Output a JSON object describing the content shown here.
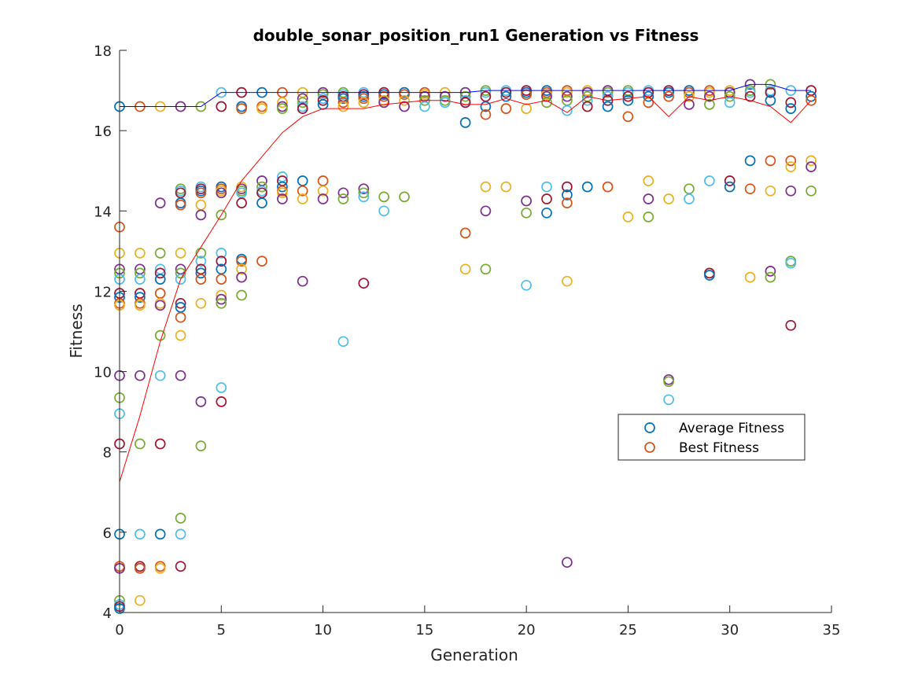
{
  "chart_data": {
    "type": "scatter",
    "title": "double_sonar_position_run1 Generation vs Fitness",
    "xlabel": "Generation",
    "ylabel": "Fitness",
    "xlim": [
      0,
      35
    ],
    "ylim": [
      4,
      18
    ],
    "xticks": [
      0,
      5,
      10,
      15,
      20,
      25,
      30,
      35
    ],
    "yticks": [
      4,
      6,
      8,
      10,
      12,
      14,
      16,
      18
    ],
    "grid": false,
    "legend": {
      "placement": "lower-right",
      "entries": [
        {
          "label": "Average Fitness",
          "color": "#0072BD"
        },
        {
          "label": "Best Fitness",
          "color": "#D95319"
        }
      ]
    },
    "marker_colors": [
      "#0072BD",
      "#D95319",
      "#EDB120",
      "#7E2F8E",
      "#77AC30",
      "#4DBEEE",
      "#A2142F"
    ],
    "population": [
      {
        "generation": 0,
        "fitness": [
          16.6,
          13.6,
          12.95,
          12.55,
          12.45,
          12.3,
          11.95,
          11.85,
          11.7,
          11.65,
          9.9,
          9.35,
          8.95,
          8.2,
          5.95,
          5.15,
          5.1,
          5.1,
          4.3,
          4.2,
          4.15,
          4.1
        ]
      },
      {
        "generation": 1,
        "fitness": [
          16.6,
          12.95,
          12.55,
          12.45,
          12.3,
          11.95,
          11.85,
          11.7,
          11.65,
          9.9,
          8.2,
          5.95,
          5.15,
          5.1,
          5.1,
          4.3
        ]
      },
      {
        "generation": 2,
        "fitness": [
          16.6,
          14.2,
          12.95,
          12.55,
          12.45,
          12.3,
          11.95,
          11.7,
          11.65,
          10.9,
          9.9,
          8.2,
          5.95,
          5.15,
          5.1
        ]
      },
      {
        "generation": 3,
        "fitness": [
          16.6,
          14.55,
          14.5,
          14.45,
          14.2,
          14.15,
          12.95,
          12.55,
          12.45,
          12.3,
          11.7,
          11.6,
          11.35,
          10.9,
          9.9,
          6.35,
          5.95,
          5.15
        ]
      },
      {
        "generation": 4,
        "fitness": [
          16.6,
          14.6,
          14.55,
          14.5,
          14.45,
          14.15,
          13.9,
          12.95,
          12.75,
          12.55,
          12.45,
          12.3,
          11.7,
          9.25,
          8.15
        ]
      },
      {
        "generation": 5,
        "fitness": [
          16.95,
          16.6,
          14.6,
          14.55,
          14.5,
          14.45,
          13.9,
          12.95,
          12.75,
          12.55,
          12.3,
          11.9,
          11.8,
          11.7,
          9.6,
          9.25
        ]
      },
      {
        "generation": 6,
        "fitness": [
          16.95,
          16.6,
          16.55,
          14.6,
          14.55,
          14.5,
          14.45,
          14.2,
          12.8,
          12.75,
          12.55,
          12.35,
          11.9
        ]
      },
      {
        "generation": 7,
        "fitness": [
          16.95,
          16.6,
          16.55,
          14.75,
          14.6,
          14.5,
          14.45,
          14.2,
          12.75
        ]
      },
      {
        "generation": 8,
        "fitness": [
          16.95,
          16.7,
          16.6,
          16.55,
          14.85,
          14.75,
          14.6,
          14.5,
          14.45,
          14.3
        ]
      },
      {
        "generation": 9,
        "fitness": [
          16.95,
          16.8,
          16.7,
          16.6,
          16.55,
          14.75,
          14.5,
          14.3,
          12.25
        ]
      },
      {
        "generation": 10,
        "fitness": [
          16.95,
          16.9,
          16.8,
          16.75,
          16.65,
          14.75,
          14.5,
          14.3
        ]
      },
      {
        "generation": 11,
        "fitness": [
          16.95,
          16.9,
          16.85,
          16.8,
          16.7,
          16.6,
          14.45,
          14.3,
          10.75
        ]
      },
      {
        "generation": 12,
        "fitness": [
          16.95,
          16.9,
          16.85,
          16.8,
          16.7,
          14.55,
          14.45,
          14.35,
          12.2
        ]
      },
      {
        "generation": 13,
        "fitness": [
          16.95,
          16.9,
          16.85,
          16.75,
          16.7,
          14.35,
          14.0
        ]
      },
      {
        "generation": 14,
        "fitness": [
          16.95,
          16.9,
          16.75,
          16.6,
          14.35
        ]
      },
      {
        "generation": 15,
        "fitness": [
          16.95,
          16.9,
          16.85,
          16.75,
          16.6
        ]
      },
      {
        "generation": 16,
        "fitness": [
          16.95,
          16.85,
          16.75,
          16.7
        ]
      },
      {
        "generation": 17,
        "fitness": [
          16.95,
          16.85,
          16.75,
          16.7,
          16.2,
          13.45,
          12.55
        ]
      },
      {
        "generation": 18,
        "fitness": [
          17.0,
          16.95,
          16.85,
          16.6,
          16.4,
          14.6,
          14.0,
          12.55
        ]
      },
      {
        "generation": 19,
        "fitness": [
          17.0,
          16.95,
          16.85,
          16.55,
          14.6
        ]
      },
      {
        "generation": 20,
        "fitness": [
          17.0,
          16.95,
          16.9,
          16.55,
          14.25,
          13.95,
          12.15
        ]
      },
      {
        "generation": 21,
        "fitness": [
          17.0,
          16.95,
          16.9,
          16.85,
          16.7,
          14.6,
          14.3,
          13.95
        ]
      },
      {
        "generation": 22,
        "fitness": [
          17.0,
          16.95,
          16.85,
          16.75,
          16.5,
          14.6,
          14.4,
          14.2,
          12.25,
          5.25
        ]
      },
      {
        "generation": 23,
        "fitness": [
          17.0,
          16.95,
          16.85,
          16.75,
          16.6,
          14.6
        ]
      },
      {
        "generation": 24,
        "fitness": [
          17.0,
          16.95,
          16.85,
          16.75,
          16.6,
          14.6
        ]
      },
      {
        "generation": 25,
        "fitness": [
          17.0,
          16.95,
          16.85,
          16.75,
          16.35,
          13.85
        ]
      },
      {
        "generation": 26,
        "fitness": [
          17.0,
          16.95,
          16.85,
          16.7,
          14.75,
          14.3,
          13.85
        ]
      },
      {
        "generation": 27,
        "fitness": [
          17.0,
          16.95,
          16.85,
          14.3,
          9.8,
          9.75,
          9.3
        ]
      },
      {
        "generation": 28,
        "fitness": [
          17.0,
          16.95,
          16.85,
          16.65,
          14.55,
          14.3
        ]
      },
      {
        "generation": 29,
        "fitness": [
          17.0,
          16.95,
          16.85,
          16.65,
          14.75,
          12.45,
          12.4
        ]
      },
      {
        "generation": 30,
        "fitness": [
          17.0,
          16.95,
          16.85,
          16.7,
          14.75,
          14.6
        ]
      },
      {
        "generation": 31,
        "fitness": [
          17.15,
          17.0,
          16.95,
          16.85,
          15.25,
          14.55,
          12.35
        ]
      },
      {
        "generation": 32,
        "fitness": [
          17.15,
          17.0,
          16.95,
          16.75,
          15.25,
          14.5,
          12.5,
          12.35
        ]
      },
      {
        "generation": 33,
        "fitness": [
          17.0,
          16.7,
          16.55,
          15.25,
          15.1,
          14.5,
          12.75,
          12.7,
          11.15
        ]
      },
      {
        "generation": 34,
        "fitness": [
          17.0,
          16.85,
          16.75,
          15.25,
          15.1,
          14.5
        ]
      }
    ],
    "series": [
      {
        "name": "Average Fitness",
        "color": "#FF0000",
        "x": [
          0,
          1,
          2,
          3,
          4,
          5,
          6,
          7,
          8,
          9,
          10,
          11,
          12,
          13,
          14,
          15,
          16,
          17,
          18,
          19,
          20,
          21,
          22,
          23,
          24,
          25,
          26,
          27,
          28,
          29,
          30,
          31,
          32,
          33,
          34
        ],
        "y": [
          7.25,
          8.9,
          10.75,
          12.3,
          13.1,
          13.9,
          14.75,
          15.35,
          15.95,
          16.35,
          16.55,
          16.55,
          16.55,
          16.65,
          16.7,
          16.75,
          16.75,
          16.65,
          16.65,
          16.8,
          16.65,
          16.75,
          16.45,
          16.85,
          16.75,
          16.8,
          16.85,
          16.35,
          16.85,
          16.75,
          16.85,
          16.75,
          16.6,
          16.2,
          16.75
        ]
      },
      {
        "name": "Best Fitness",
        "color": "#0000FF",
        "x": [
          0,
          1,
          2,
          3,
          4,
          5,
          6,
          7,
          8,
          9,
          10,
          11,
          12,
          13,
          14,
          15,
          16,
          17,
          18,
          19,
          20,
          21,
          22,
          23,
          24,
          25,
          26,
          27,
          28,
          29,
          30,
          31,
          32,
          33,
          34
        ],
        "y": [
          16.6,
          16.6,
          16.6,
          16.6,
          16.6,
          16.95,
          16.95,
          16.95,
          16.95,
          16.95,
          16.95,
          16.95,
          16.95,
          16.95,
          16.95,
          16.95,
          16.95,
          16.95,
          17.0,
          17.0,
          17.0,
          17.0,
          17.0,
          17.0,
          17.0,
          17.0,
          17.0,
          17.0,
          17.0,
          17.0,
          17.0,
          17.15,
          17.15,
          17.0,
          17.0
        ]
      }
    ]
  }
}
